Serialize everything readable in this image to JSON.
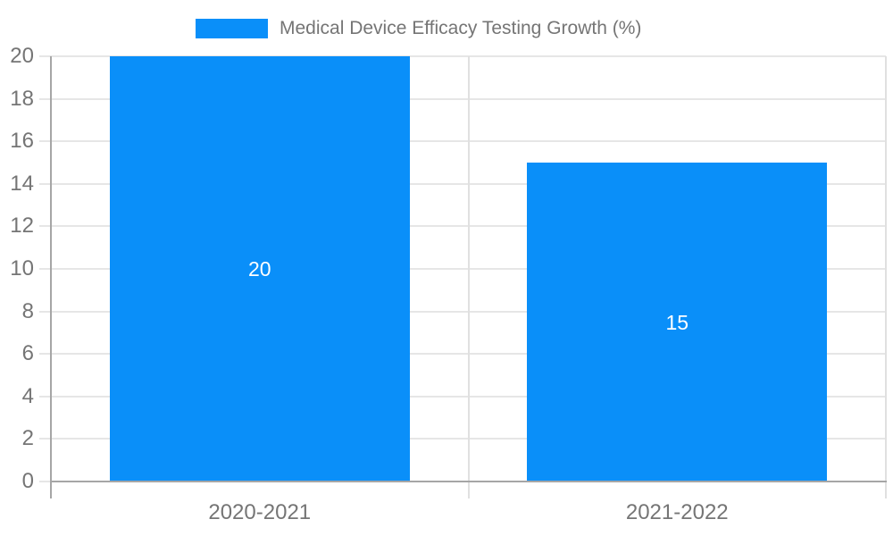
{
  "chart_data": {
    "type": "bar",
    "title": "Medical Device Efficacy Testing Growth (%)",
    "categories": [
      "2020-2021",
      "2021-2022"
    ],
    "values": [
      20,
      15
    ],
    "bar_labels": [
      "20",
      "15"
    ],
    "ylim": [
      0,
      20
    ],
    "ytick_step": 2,
    "yticks": [
      0,
      2,
      4,
      6,
      8,
      10,
      12,
      14,
      16,
      18,
      20
    ],
    "xlabel": "",
    "ylabel": "",
    "grid": true,
    "legend_position": "top",
    "colors": {
      "bar": "#0a8ff9",
      "bar_label_text": "#ffffff",
      "axis_text": "#757575",
      "legend_text": "#757575",
      "axis_line": "#a6a6a6",
      "gridline": "#e6e6e6",
      "category_divider": "#e0e0e0",
      "background": "#ffffff"
    }
  }
}
